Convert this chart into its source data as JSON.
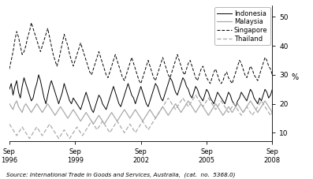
{
  "title": "",
  "ylabel": "%",
  "ylim": [
    7,
    54
  ],
  "yticks": [
    10,
    20,
    30,
    40,
    50
  ],
  "source_text": "Source: International Trade in Goods and Services, Australia,  (cat.  no.  5368.0)",
  "legend_labels": [
    "Indonesia",
    "Malaysia",
    "Singapore",
    "Thailand"
  ],
  "legend_styles": [
    {
      "color": "#000000",
      "linestyle": "-",
      "linewidth": 0.7
    },
    {
      "color": "#aaaaaa",
      "linestyle": "-",
      "linewidth": 0.9
    },
    {
      "color": "#000000",
      "linestyle": "--",
      "linewidth": 0.7,
      "dashes": [
        4,
        2
      ]
    },
    {
      "color": "#aaaaaa",
      "linestyle": "--",
      "linewidth": 0.9,
      "dashes": [
        4,
        2
      ]
    }
  ],
  "xtick_positions": [
    0,
    36,
    72,
    108,
    144
  ],
  "xtick_labels": [
    "Sep\n1996",
    "Sep\n1999",
    "Sep\n2002",
    "Sep\n2005",
    "Sep\n2008"
  ],
  "background_color": "#ffffff",
  "n_points": 145,
  "indonesia": [
    25,
    27,
    23,
    26,
    28,
    24,
    22,
    26,
    29,
    27,
    25,
    23,
    21,
    22,
    25,
    27,
    30,
    28,
    25,
    22,
    20,
    23,
    26,
    28,
    26,
    24,
    22,
    20,
    22,
    24,
    27,
    25,
    23,
    21,
    20,
    22,
    21,
    20,
    19,
    18,
    20,
    22,
    24,
    22,
    20,
    18,
    17,
    19,
    21,
    23,
    22,
    20,
    19,
    18,
    20,
    22,
    24,
    26,
    24,
    22,
    20,
    19,
    21,
    23,
    25,
    27,
    25,
    23,
    22,
    20,
    22,
    24,
    26,
    24,
    22,
    20,
    19,
    21,
    23,
    25,
    27,
    26,
    24,
    22,
    21,
    23,
    25,
    27,
    29,
    28,
    26,
    24,
    23,
    25,
    27,
    29,
    28,
    26,
    25,
    23,
    22,
    24,
    26,
    25,
    23,
    22,
    21,
    23,
    25,
    24,
    22,
    21,
    20,
    22,
    24,
    23,
    22,
    21,
    20,
    22,
    24,
    23,
    21,
    20,
    19,
    21,
    22,
    24,
    23,
    22,
    21,
    23,
    25,
    24,
    22,
    21,
    20,
    22,
    21,
    23,
    25,
    24,
    22,
    23,
    25
  ],
  "malaysia": [
    20,
    19,
    18,
    20,
    21,
    19,
    18,
    17,
    19,
    20,
    19,
    18,
    17,
    18,
    19,
    20,
    19,
    18,
    17,
    18,
    19,
    20,
    19,
    18,
    17,
    16,
    17,
    18,
    19,
    18,
    17,
    16,
    15,
    16,
    17,
    18,
    17,
    16,
    15,
    14,
    15,
    16,
    17,
    16,
    15,
    14,
    13,
    14,
    15,
    16,
    15,
    14,
    13,
    14,
    15,
    16,
    17,
    16,
    15,
    14,
    15,
    16,
    17,
    18,
    17,
    16,
    15,
    16,
    17,
    18,
    17,
    16,
    15,
    14,
    15,
    16,
    17,
    18,
    17,
    16,
    15,
    16,
    17,
    18,
    19,
    18,
    17,
    16,
    17,
    18,
    19,
    20,
    19,
    18,
    17,
    18,
    19,
    20,
    21,
    20,
    19,
    18,
    17,
    18,
    19,
    20,
    19,
    18,
    17,
    16,
    17,
    18,
    19,
    20,
    19,
    18,
    17,
    16,
    17,
    18,
    19,
    18,
    17,
    18,
    19,
    20,
    19,
    18,
    17,
    18,
    19,
    20,
    21,
    20,
    19,
    18,
    17,
    18,
    19,
    20,
    21,
    20,
    19,
    18,
    17
  ],
  "singapore": [
    32,
    35,
    38,
    42,
    45,
    43,
    40,
    37,
    38,
    40,
    43,
    45,
    48,
    46,
    44,
    42,
    40,
    38,
    40,
    42,
    44,
    46,
    43,
    40,
    37,
    35,
    33,
    35,
    38,
    41,
    44,
    42,
    40,
    37,
    35,
    33,
    35,
    37,
    39,
    41,
    39,
    37,
    35,
    33,
    31,
    30,
    32,
    34,
    36,
    38,
    36,
    34,
    32,
    30,
    29,
    31,
    33,
    35,
    37,
    35,
    33,
    31,
    29,
    28,
    30,
    32,
    34,
    36,
    34,
    32,
    30,
    28,
    27,
    29,
    31,
    33,
    35,
    33,
    31,
    29,
    28,
    30,
    32,
    34,
    36,
    34,
    32,
    30,
    29,
    31,
    33,
    35,
    37,
    35,
    33,
    31,
    30,
    32,
    34,
    35,
    33,
    31,
    29,
    28,
    30,
    32,
    33,
    31,
    29,
    28,
    27,
    29,
    31,
    32,
    30,
    28,
    27,
    28,
    30,
    31,
    29,
    28,
    27,
    29,
    31,
    33,
    35,
    34,
    32,
    30,
    29,
    31,
    33,
    32,
    30,
    29,
    28,
    30,
    32,
    34,
    36,
    35,
    33,
    32,
    30
  ],
  "thailand": [
    13,
    12,
    11,
    10,
    9,
    10,
    11,
    12,
    11,
    10,
    9,
    8,
    9,
    10,
    11,
    12,
    11,
    10,
    9,
    10,
    11,
    12,
    13,
    12,
    11,
    10,
    9,
    8,
    9,
    10,
    11,
    10,
    9,
    8,
    9,
    10,
    11,
    12,
    11,
    10,
    9,
    10,
    11,
    12,
    13,
    14,
    13,
    12,
    11,
    12,
    13,
    14,
    13,
    12,
    11,
    10,
    11,
    12,
    13,
    14,
    13,
    12,
    11,
    10,
    11,
    12,
    13,
    12,
    11,
    10,
    11,
    12,
    13,
    14,
    13,
    12,
    11,
    12,
    13,
    14,
    15,
    16,
    17,
    18,
    19,
    20,
    21,
    22,
    21,
    20,
    19,
    18,
    19,
    20,
    21,
    22,
    21,
    20,
    19,
    20,
    21,
    22,
    23,
    22,
    21,
    20,
    19,
    20,
    21,
    22,
    21,
    20,
    19,
    18,
    19,
    20,
    21,
    20,
    19,
    18,
    17,
    18,
    19,
    20,
    19,
    18,
    17,
    16,
    17,
    18,
    19,
    18,
    17,
    16,
    17,
    18,
    19,
    20,
    21,
    20,
    19,
    18,
    17,
    16,
    17
  ]
}
